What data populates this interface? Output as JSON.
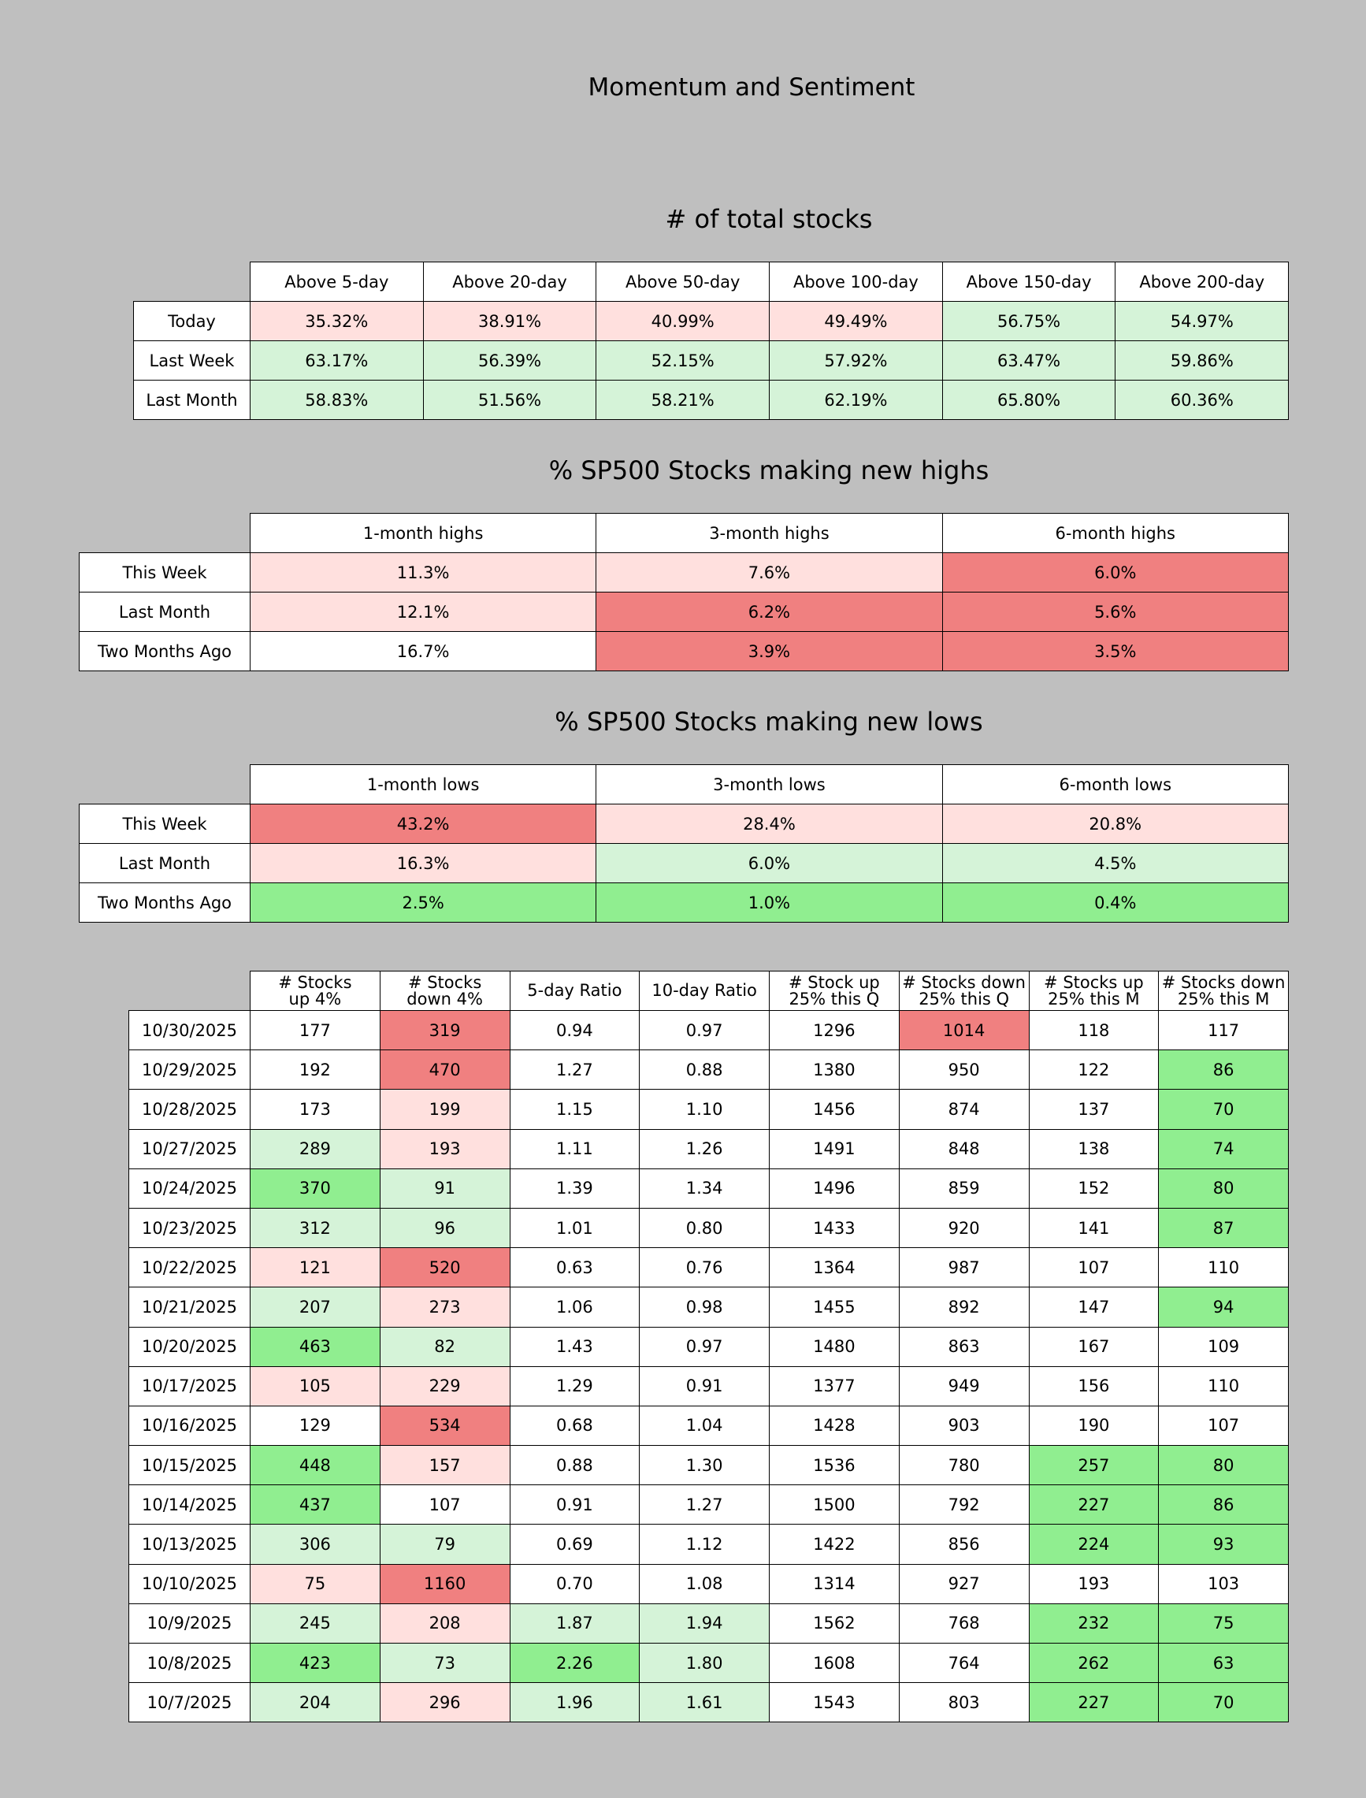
{
  "main_title": "Momentum and Sentiment",
  "colors": {
    "neutral": "#ffffff",
    "light_red": "#ffe0de",
    "red": "#f08080",
    "light_green": "#d5f3d8",
    "green": "#90ee90",
    "background": "#bfbfbf"
  },
  "chart_data": [
    {
      "type": "table",
      "title": "# of total stocks",
      "columns": [
        "Above 5-day",
        "Above 20-day",
        "Above 50-day",
        "Above 100-day",
        "Above 150-day",
        "Above 200-day"
      ],
      "rows": [
        {
          "label": "Today",
          "values": [
            "35.32%",
            "38.91%",
            "40.99%",
            "49.49%",
            "56.75%",
            "54.97%"
          ],
          "colors": [
            1,
            1,
            1,
            1,
            3,
            3
          ]
        },
        {
          "label": "Last Week",
          "values": [
            "63.17%",
            "56.39%",
            "52.15%",
            "57.92%",
            "63.47%",
            "59.86%"
          ],
          "colors": [
            3,
            3,
            3,
            3,
            3,
            3
          ]
        },
        {
          "label": "Last Month",
          "values": [
            "58.83%",
            "51.56%",
            "58.21%",
            "62.19%",
            "65.80%",
            "60.36%"
          ],
          "colors": [
            3,
            3,
            3,
            3,
            3,
            3
          ]
        }
      ]
    },
    {
      "type": "table",
      "title": "% SP500 Stocks making new highs",
      "columns": [
        "1-month highs",
        "3-month highs",
        "6-month highs"
      ],
      "rows": [
        {
          "label": "This Week",
          "values": [
            "11.3%",
            "7.6%",
            "6.0%"
          ],
          "colors": [
            1,
            1,
            2
          ]
        },
        {
          "label": "Last Month",
          "values": [
            "12.1%",
            "6.2%",
            "5.6%"
          ],
          "colors": [
            1,
            2,
            2
          ]
        },
        {
          "label": "Two Months Ago",
          "values": [
            "16.7%",
            "3.9%",
            "3.5%"
          ],
          "colors": [
            0,
            2,
            2
          ]
        }
      ]
    },
    {
      "type": "table",
      "title": "% SP500 Stocks making new lows",
      "columns": [
        "1-month lows",
        "3-month lows",
        "6-month lows"
      ],
      "rows": [
        {
          "label": "This Week",
          "values": [
            "43.2%",
            "28.4%",
            "20.8%"
          ],
          "colors": [
            2,
            1,
            1
          ]
        },
        {
          "label": "Last Month",
          "values": [
            "16.3%",
            "6.0%",
            "4.5%"
          ],
          "colors": [
            1,
            3,
            3
          ]
        },
        {
          "label": "Two Months Ago",
          "values": [
            "2.5%",
            "1.0%",
            "0.4%"
          ],
          "colors": [
            4,
            4,
            4
          ]
        }
      ]
    },
    {
      "type": "table",
      "title": "",
      "columns": [
        [
          "# Stocks",
          "up 4%"
        ],
        [
          "# Stocks",
          "down 4%"
        ],
        [
          "5-day Ratio"
        ],
        [
          "10-day Ratio"
        ],
        [
          "# Stock up",
          "25% this Q"
        ],
        [
          "# Stocks down",
          "25% this Q"
        ],
        [
          "# Stocks up",
          "25% this M"
        ],
        [
          "# Stocks down",
          "25% this M"
        ]
      ],
      "rows": [
        {
          "label": "10/30/2025",
          "values": [
            "177",
            "319",
            "0.94",
            "0.97",
            "1296",
            "1014",
            "118",
            "117"
          ],
          "colors": [
            0,
            2,
            0,
            0,
            0,
            2,
            0,
            0
          ]
        },
        {
          "label": "10/29/2025",
          "values": [
            "192",
            "470",
            "1.27",
            "0.88",
            "1380",
            "950",
            "122",
            "86"
          ],
          "colors": [
            0,
            2,
            0,
            0,
            0,
            0,
            0,
            4
          ]
        },
        {
          "label": "10/28/2025",
          "values": [
            "173",
            "199",
            "1.15",
            "1.10",
            "1456",
            "874",
            "137",
            "70"
          ],
          "colors": [
            0,
            1,
            0,
            0,
            0,
            0,
            0,
            4
          ]
        },
        {
          "label": "10/27/2025",
          "values": [
            "289",
            "193",
            "1.11",
            "1.26",
            "1491",
            "848",
            "138",
            "74"
          ],
          "colors": [
            3,
            1,
            0,
            0,
            0,
            0,
            0,
            4
          ]
        },
        {
          "label": "10/24/2025",
          "values": [
            "370",
            "91",
            "1.39",
            "1.34",
            "1496",
            "859",
            "152",
            "80"
          ],
          "colors": [
            4,
            3,
            0,
            0,
            0,
            0,
            0,
            4
          ]
        },
        {
          "label": "10/23/2025",
          "values": [
            "312",
            "96",
            "1.01",
            "0.80",
            "1433",
            "920",
            "141",
            "87"
          ],
          "colors": [
            3,
            3,
            0,
            0,
            0,
            0,
            0,
            4
          ]
        },
        {
          "label": "10/22/2025",
          "values": [
            "121",
            "520",
            "0.63",
            "0.76",
            "1364",
            "987",
            "107",
            "110"
          ],
          "colors": [
            1,
            2,
            0,
            0,
            0,
            0,
            0,
            0
          ]
        },
        {
          "label": "10/21/2025",
          "values": [
            "207",
            "273",
            "1.06",
            "0.98",
            "1455",
            "892",
            "147",
            "94"
          ],
          "colors": [
            3,
            1,
            0,
            0,
            0,
            0,
            0,
            4
          ]
        },
        {
          "label": "10/20/2025",
          "values": [
            "463",
            "82",
            "1.43",
            "0.97",
            "1480",
            "863",
            "167",
            "109"
          ],
          "colors": [
            4,
            3,
            0,
            0,
            0,
            0,
            0,
            0
          ]
        },
        {
          "label": "10/17/2025",
          "values": [
            "105",
            "229",
            "1.29",
            "0.91",
            "1377",
            "949",
            "156",
            "110"
          ],
          "colors": [
            1,
            1,
            0,
            0,
            0,
            0,
            0,
            0
          ]
        },
        {
          "label": "10/16/2025",
          "values": [
            "129",
            "534",
            "0.68",
            "1.04",
            "1428",
            "903",
            "190",
            "107"
          ],
          "colors": [
            0,
            2,
            0,
            0,
            0,
            0,
            0,
            0
          ]
        },
        {
          "label": "10/15/2025",
          "values": [
            "448",
            "157",
            "0.88",
            "1.30",
            "1536",
            "780",
            "257",
            "80"
          ],
          "colors": [
            4,
            1,
            0,
            0,
            0,
            0,
            4,
            4
          ]
        },
        {
          "label": "10/14/2025",
          "values": [
            "437",
            "107",
            "0.91",
            "1.27",
            "1500",
            "792",
            "227",
            "86"
          ],
          "colors": [
            4,
            0,
            0,
            0,
            0,
            0,
            4,
            4
          ]
        },
        {
          "label": "10/13/2025",
          "values": [
            "306",
            "79",
            "0.69",
            "1.12",
            "1422",
            "856",
            "224",
            "93"
          ],
          "colors": [
            3,
            3,
            0,
            0,
            0,
            0,
            4,
            4
          ]
        },
        {
          "label": "10/10/2025",
          "values": [
            "75",
            "1160",
            "0.70",
            "1.08",
            "1314",
            "927",
            "193",
            "103"
          ],
          "colors": [
            1,
            2,
            0,
            0,
            0,
            0,
            0,
            0
          ]
        },
        {
          "label": "10/9/2025",
          "values": [
            "245",
            "208",
            "1.87",
            "1.94",
            "1562",
            "768",
            "232",
            "75"
          ],
          "colors": [
            3,
            1,
            3,
            3,
            0,
            0,
            4,
            4
          ]
        },
        {
          "label": "10/8/2025",
          "values": [
            "423",
            "73",
            "2.26",
            "1.80",
            "1608",
            "764",
            "262",
            "63"
          ],
          "colors": [
            4,
            3,
            4,
            3,
            0,
            0,
            4,
            4
          ]
        },
        {
          "label": "10/7/2025",
          "values": [
            "204",
            "296",
            "1.96",
            "1.61",
            "1543",
            "803",
            "227",
            "70"
          ],
          "colors": [
            3,
            1,
            3,
            3,
            0,
            0,
            4,
            4
          ]
        }
      ]
    }
  ]
}
